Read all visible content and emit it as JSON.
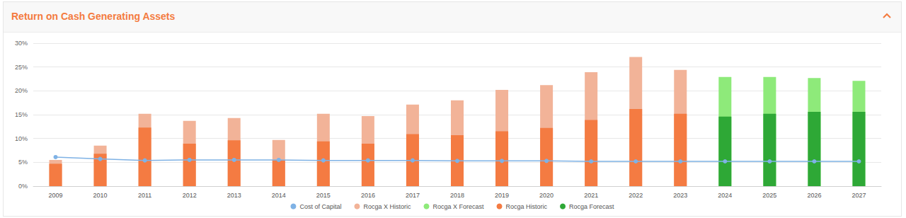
{
  "chart_data": {
    "type": "bar",
    "title": "Return on Cash Generating Assets",
    "categories": [
      "2009",
      "2010",
      "2011",
      "2012",
      "2013",
      "2014",
      "2015",
      "2016",
      "2017",
      "2018",
      "2019",
      "2020",
      "2021",
      "2022",
      "2023",
      "2024",
      "2025",
      "2026",
      "2027"
    ],
    "series": [
      {
        "name": "Cost of Capital",
        "type": "line",
        "marker": "circle",
        "color": "#7fb2e5",
        "values": [
          6.1,
          5.7,
          5.4,
          5.5,
          5.5,
          5.5,
          5.4,
          5.4,
          5.4,
          5.3,
          5.3,
          5.3,
          5.2,
          5.2,
          5.2,
          5.2,
          5.2,
          5.2,
          5.2
        ]
      },
      {
        "name": "Rocga X Historic",
        "type": "bar",
        "color": "#f2b398",
        "values": [
          5.5,
          8.5,
          15.2,
          13.7,
          14.3,
          9.7,
          15.2,
          14.7,
          17.1,
          18.0,
          20.2,
          21.2,
          23.9,
          27.1,
          24.4,
          null,
          null,
          null,
          null
        ]
      },
      {
        "name": "Rocga X Forecast",
        "type": "bar",
        "color": "#8eea7a",
        "values": [
          null,
          null,
          null,
          null,
          null,
          null,
          null,
          null,
          null,
          null,
          null,
          null,
          null,
          null,
          null,
          22.9,
          22.9,
          22.7,
          22.1
        ]
      },
      {
        "name": "Rocga Historic",
        "type": "bar",
        "color": "#f47b42",
        "values": [
          4.7,
          6.8,
          12.3,
          8.9,
          9.6,
          5.5,
          9.4,
          8.9,
          10.9,
          10.7,
          11.5,
          12.2,
          13.9,
          16.2,
          15.2,
          null,
          null,
          null,
          null
        ]
      },
      {
        "name": "Rocga Forecast",
        "type": "bar",
        "color": "#2ea836",
        "values": [
          null,
          null,
          null,
          null,
          null,
          null,
          null,
          null,
          null,
          null,
          null,
          null,
          null,
          null,
          null,
          14.6,
          15.2,
          15.6,
          15.6
        ]
      }
    ],
    "ylim": [
      0,
      30
    ],
    "yticks": [
      {
        "value": 0,
        "label": "0%"
      },
      {
        "value": 5,
        "label": "5%"
      },
      {
        "value": 10,
        "label": "10%"
      },
      {
        "value": 15,
        "label": "15%"
      },
      {
        "value": 20,
        "label": "20%"
      },
      {
        "value": 25,
        "label": "25%"
      },
      {
        "value": 30,
        "label": "30%"
      }
    ],
    "grid": true,
    "legend": "bottom",
    "stacked": false
  }
}
